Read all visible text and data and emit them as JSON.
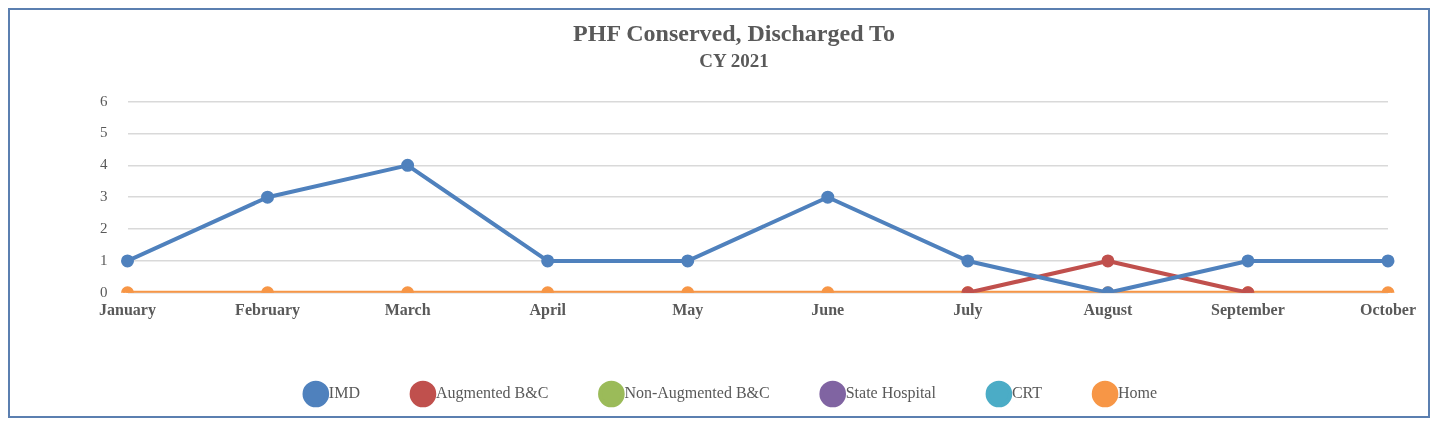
{
  "chart_data": {
    "type": "line",
    "title": "PHF Conserved, Discharged To",
    "subtitle": "CY 2021",
    "categories": [
      "January",
      "February",
      "March",
      "April",
      "May",
      "June",
      "July",
      "August",
      "September",
      "October"
    ],
    "series": [
      {
        "name": "IMD",
        "color": "#4f81bd",
        "values": [
          1,
          3,
          4,
          1,
          1,
          3,
          1,
          0,
          1,
          1
        ]
      },
      {
        "name": "Augmented B&C",
        "color": "#c0504d",
        "values": [
          null,
          null,
          null,
          null,
          null,
          null,
          0,
          1,
          0,
          null
        ]
      },
      {
        "name": "Non-Augmented B&C",
        "color": "#9bbb59",
        "values": [
          null,
          null,
          null,
          null,
          null,
          null,
          null,
          null,
          null,
          null
        ]
      },
      {
        "name": "State Hospital",
        "color": "#8064a2",
        "values": [
          null,
          null,
          null,
          null,
          null,
          null,
          null,
          null,
          null,
          null
        ]
      },
      {
        "name": "CRT",
        "color": "#4bacc6",
        "values": [
          null,
          null,
          null,
          null,
          null,
          null,
          null,
          null,
          null,
          null
        ]
      },
      {
        "name": "Home",
        "color": "#f79646",
        "values": [
          0,
          0,
          0,
          0,
          0,
          0,
          0,
          0,
          0,
          0
        ]
      }
    ],
    "ylim": [
      0,
      6
    ],
    "yticks": [
      0,
      1,
      2,
      3,
      4,
      5,
      6
    ],
    "grid": "y",
    "legend": "bottom",
    "marker": "circle",
    "line_style": "solid"
  }
}
